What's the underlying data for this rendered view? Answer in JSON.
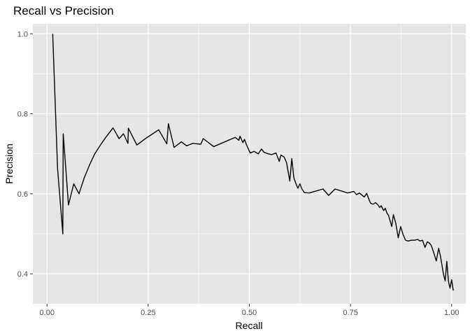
{
  "chart_data": {
    "type": "line",
    "title": "Recall vs Precision",
    "xlabel": "Recall",
    "ylabel": "Precision",
    "xlim": [
      -0.035,
      1.035
    ],
    "ylim": [
      0.325,
      1.025
    ],
    "x_ticks": [
      0.0,
      0.25,
      0.5,
      0.75,
      1.0
    ],
    "x_tick_labels": [
      "0.00",
      "0.25",
      "0.50",
      "0.75",
      "1.00"
    ],
    "y_ticks": [
      0.4,
      0.6,
      0.8,
      1.0
    ],
    "y_tick_labels": [
      "0.4",
      "0.6",
      "0.8",
      "1.0"
    ],
    "grid": true,
    "legend": "none",
    "colors": {
      "panel": "#e5e5e5",
      "grid": "#ffffff",
      "line": "#000000"
    },
    "series": [
      {
        "x": [
          0.014,
          0.026,
          0.039,
          0.04,
          0.053,
          0.066,
          0.079,
          0.092,
          0.105,
          0.118,
          0.132,
          0.145,
          0.158,
          0.163,
          0.178,
          0.189,
          0.2,
          0.201,
          0.222,
          0.246,
          0.276,
          0.296,
          0.3,
          0.314,
          0.332,
          0.345,
          0.36,
          0.38,
          0.386,
          0.412,
          0.465,
          0.474,
          0.477,
          0.484,
          0.488,
          0.492,
          0.502,
          0.512,
          0.522,
          0.53,
          0.536,
          0.546,
          0.555,
          0.566,
          0.574,
          0.578,
          0.586,
          0.592,
          0.6,
          0.605,
          0.61,
          0.615,
          0.62,
          0.625,
          0.63,
          0.636,
          0.648,
          0.682,
          0.696,
          0.712,
          0.743,
          0.758,
          0.765,
          0.772,
          0.784,
          0.79,
          0.796,
          0.8,
          0.806,
          0.812,
          0.818,
          0.822,
          0.826,
          0.832,
          0.836,
          0.84,
          0.844,
          0.848,
          0.852,
          0.856,
          0.862,
          0.868,
          0.874,
          0.88,
          0.886,
          0.892,
          0.9,
          0.908,
          0.916,
          0.922,
          0.928,
          0.934,
          0.94,
          0.946,
          0.95,
          0.956,
          0.962,
          0.968,
          0.972,
          0.976,
          0.98,
          0.984,
          0.988,
          0.992,
          0.996,
          1.0,
          1.004
        ],
        "y": [
          1.0,
          0.664,
          0.5,
          0.75,
          0.572,
          0.625,
          0.6,
          0.64,
          0.672,
          0.7,
          0.722,
          0.741,
          0.758,
          0.765,
          0.738,
          0.75,
          0.726,
          0.764,
          0.722,
          0.74,
          0.76,
          0.725,
          0.775,
          0.716,
          0.73,
          0.72,
          0.726,
          0.724,
          0.738,
          0.718,
          0.741,
          0.734,
          0.744,
          0.728,
          0.736,
          0.725,
          0.702,
          0.706,
          0.7,
          0.712,
          0.704,
          0.7,
          0.698,
          0.702,
          0.681,
          0.697,
          0.692,
          0.678,
          0.632,
          0.688,
          0.64,
          0.626,
          0.614,
          0.625,
          0.612,
          0.603,
          0.602,
          0.612,
          0.596,
          0.612,
          0.602,
          0.606,
          0.598,
          0.602,
          0.592,
          0.601,
          0.585,
          0.576,
          0.574,
          0.578,
          0.572,
          0.566,
          0.57,
          0.558,
          0.564,
          0.552,
          0.546,
          0.532,
          0.518,
          0.548,
          0.526,
          0.49,
          0.518,
          0.498,
          0.484,
          0.482,
          0.484,
          0.484,
          0.486,
          0.482,
          0.484,
          0.466,
          0.48,
          0.476,
          0.47,
          0.452,
          0.432,
          0.464,
          0.446,
          0.422,
          0.398,
          0.382,
          0.431,
          0.382,
          0.364,
          0.385,
          0.358
        ]
      }
    ]
  }
}
